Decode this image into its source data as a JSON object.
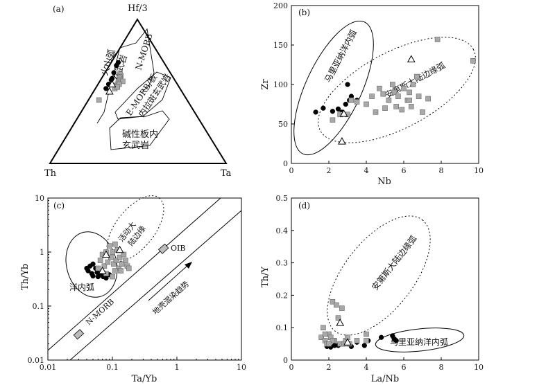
{
  "chart_data": [
    {
      "panel": "(a)",
      "type": "scatter",
      "subtype": "ternary",
      "apex_labels": [
        "Hf/3",
        "Th",
        "Ta"
      ],
      "field_labels": [
        "火山弧",
        "玄武岩",
        "N-MORB",
        "E-MORB/板",
        "内拉斑玄武岩",
        "碱性板内",
        "玄武岩"
      ],
      "series": [
        {
          "marker": "filled-circle",
          "color": "#000000",
          "points_hf_th_ta": [
            [
              0.7,
              0.26,
              0.04
            ],
            [
              0.68,
              0.28,
              0.04
            ],
            [
              0.63,
              0.32,
              0.05
            ],
            [
              0.59,
              0.35,
              0.06
            ],
            [
              0.58,
              0.36,
              0.06
            ],
            [
              0.55,
              0.39,
              0.06
            ],
            [
              0.52,
              0.42,
              0.06
            ]
          ]
        },
        {
          "marker": "gray-square",
          "color": "#a8a8a8",
          "points_hf_th_ta": [
            [
              0.62,
              0.29,
              0.09
            ],
            [
              0.61,
              0.29,
              0.1
            ],
            [
              0.6,
              0.3,
              0.1
            ],
            [
              0.59,
              0.31,
              0.1
            ],
            [
              0.58,
              0.31,
              0.11
            ],
            [
              0.57,
              0.32,
              0.11
            ],
            [
              0.56,
              0.33,
              0.11
            ],
            [
              0.55,
              0.34,
              0.11
            ],
            [
              0.54,
              0.35,
              0.11
            ],
            [
              0.53,
              0.36,
              0.11
            ],
            [
              0.52,
              0.37,
              0.11
            ],
            [
              0.57,
              0.3,
              0.13
            ],
            [
              0.55,
              0.33,
              0.12
            ],
            [
              0.53,
              0.35,
              0.12
            ],
            [
              0.44,
              0.5,
              0.06
            ]
          ]
        },
        {
          "marker": "open-triangle",
          "color": "#ffffff",
          "points_hf_th_ta": [
            [
              0.55,
              0.37,
              0.08
            ],
            [
              0.5,
              0.41,
              0.09
            ]
          ]
        }
      ]
    },
    {
      "panel": "(b)",
      "type": "scatter",
      "xlabel": "Nb",
      "ylabel": "Zr",
      "xlim": [
        0,
        10
      ],
      "ylim": [
        0,
        200
      ],
      "xticks": [
        "0",
        "2",
        "4",
        "6",
        "8",
        "10"
      ],
      "yticks": [
        "0",
        "50",
        "100",
        "150",
        "200"
      ],
      "field_labels": [
        "马里亚纳洋内弧",
        "安第斯大陆边缘弧"
      ],
      "series": [
        {
          "marker": "filled-circle",
          "color": "#000000",
          "points": [
            [
              1.3,
              65
            ],
            [
              1.7,
              70
            ],
            [
              2.2,
              66
            ],
            [
              2.5,
              69
            ],
            [
              2.9,
              75
            ],
            [
              3.0,
              100
            ],
            [
              3.2,
              85
            ],
            [
              3.5,
              80
            ],
            [
              2.7,
              65
            ],
            [
              3.1,
              80
            ]
          ]
        },
        {
          "marker": "gray-square",
          "color": "#a8a8a8",
          "points": [
            [
              2.2,
              55
            ],
            [
              2.6,
              62
            ],
            [
              3.0,
              62
            ],
            [
              3.2,
              80
            ],
            [
              3.5,
              78
            ],
            [
              4.0,
              75
            ],
            [
              4.3,
              85
            ],
            [
              4.5,
              65
            ],
            [
              4.7,
              95
            ],
            [
              4.9,
              88
            ],
            [
              5.0,
              70
            ],
            [
              5.2,
              80
            ],
            [
              5.4,
              100
            ],
            [
              5.5,
              90
            ],
            [
              5.6,
              72
            ],
            [
              5.7,
              85
            ],
            [
              5.9,
              68
            ],
            [
              6.0,
              95
            ],
            [
              6.2,
              80
            ],
            [
              6.3,
              90
            ],
            [
              6.3,
              80
            ],
            [
              6.4,
              72
            ],
            [
              6.5,
              100
            ],
            [
              6.7,
              110
            ],
            [
              6.8,
              85
            ],
            [
              7.0,
              65
            ],
            [
              7.3,
              82
            ],
            [
              7.8,
              157
            ],
            [
              9.7,
              130
            ]
          ]
        },
        {
          "marker": "open-triangle",
          "color": "#ffffff",
          "points": [
            [
              2.7,
              28
            ],
            [
              2.8,
              63
            ],
            [
              6.4,
              132
            ]
          ]
        }
      ]
    },
    {
      "panel": "(c)",
      "type": "scatter",
      "xlabel": "Ta/Yb",
      "ylabel": "Th/Yb",
      "xscale": "log",
      "yscale": "log",
      "xlim": [
        0.01,
        10
      ],
      "ylim": [
        0.01,
        10
      ],
      "xticks": [
        "0.01",
        "0.1",
        "1",
        "10"
      ],
      "yticks": [
        "0.01",
        "0.1",
        "1",
        "10"
      ],
      "field_labels": [
        "活动大",
        "陆边缘",
        "洋内弧",
        "N-MORB",
        "OIB",
        "地壳混染趋势"
      ],
      "series": [
        {
          "marker": "filled-circle",
          "color": "#000000",
          "points": [
            [
              0.04,
              0.5
            ],
            [
              0.045,
              0.55
            ],
            [
              0.05,
              0.6
            ],
            [
              0.042,
              0.45
            ],
            [
              0.048,
              0.4
            ],
            [
              0.055,
              0.5
            ],
            [
              0.06,
              0.35
            ],
            [
              0.065,
              0.4
            ],
            [
              0.072,
              0.35
            ],
            [
              0.08,
              0.33
            ],
            [
              0.09,
              0.38
            ],
            [
              0.058,
              0.42
            ],
            [
              0.05,
              0.36
            ]
          ]
        },
        {
          "marker": "gray-square",
          "color": "#a8a8a8",
          "points": [
            [
              0.06,
              0.5
            ],
            [
              0.065,
              0.7
            ],
            [
              0.07,
              0.9
            ],
            [
              0.075,
              0.55
            ],
            [
              0.08,
              1.0
            ],
            [
              0.085,
              0.65
            ],
            [
              0.09,
              1.3
            ],
            [
              0.095,
              0.8
            ],
            [
              0.1,
              1.0
            ],
            [
              0.105,
              0.6
            ],
            [
              0.11,
              1.4
            ],
            [
              0.115,
              0.7
            ],
            [
              0.12,
              1.1
            ],
            [
              0.125,
              0.5
            ],
            [
              0.13,
              0.8
            ],
            [
              0.135,
              0.45
            ],
            [
              0.14,
              0.6
            ],
            [
              0.15,
              0.9
            ],
            [
              0.16,
              0.7
            ],
            [
              0.17,
              0.55
            ],
            [
              0.18,
              0.5
            ],
            [
              0.08,
              0.4
            ],
            [
              0.1,
              0.35
            ],
            [
              0.11,
              0.45
            ]
          ]
        },
        {
          "marker": "open-triangle",
          "color": "#ffffff",
          "points": [
            [
              0.07,
              0.45
            ],
            [
              0.08,
              0.9
            ],
            [
              0.13,
              1.1
            ]
          ]
        }
      ]
    },
    {
      "panel": "(d)",
      "type": "scatter",
      "xlabel": "La/Nb",
      "ylabel": "Th/Y",
      "xlim": [
        0,
        10
      ],
      "ylim": [
        0,
        0.5
      ],
      "xticks": [
        "0",
        "2",
        "4",
        "6",
        "8",
        "10"
      ],
      "yticks": [
        "0",
        "0.1",
        "0.2",
        "0.3",
        "0.4",
        "0.5"
      ],
      "field_labels": [
        "安第斯大陆边缘弧",
        "马里亚纳洋内弧"
      ],
      "series": [
        {
          "marker": "filled-circle",
          "color": "#000000",
          "points": [
            [
              1.9,
              0.042
            ],
            [
              2.1,
              0.04
            ],
            [
              2.3,
              0.045
            ],
            [
              2.5,
              0.045
            ],
            [
              2.8,
              0.05
            ],
            [
              3.2,
              0.042
            ],
            [
              3.5,
              0.055
            ],
            [
              3.9,
              0.045
            ],
            [
              4.1,
              0.06
            ],
            [
              4.8,
              0.07
            ],
            [
              5.4,
              0.075
            ],
            [
              5.5,
              0.065
            ],
            [
              5.6,
              0.06
            ]
          ]
        },
        {
          "marker": "gray-square",
          "color": "#a8a8a8",
          "points": [
            [
              1.6,
              0.07
            ],
            [
              1.7,
              0.1
            ],
            [
              1.8,
              0.06
            ],
            [
              1.9,
              0.05
            ],
            [
              2.0,
              0.08
            ],
            [
              2.1,
              0.07
            ],
            [
              2.2,
              0.18
            ],
            [
              2.3,
              0.06
            ],
            [
              2.4,
              0.17
            ],
            [
              2.5,
              0.13
            ],
            [
              2.6,
              0.05
            ],
            [
              2.7,
              0.16
            ],
            [
              2.8,
              0.05
            ],
            [
              2.9,
              0.06
            ],
            [
              3.0,
              0.07
            ],
            [
              3.1,
              0.05
            ],
            [
              3.5,
              0.06
            ],
            [
              4.0,
              0.06
            ],
            [
              4.0,
              0.08
            ],
            [
              2.2,
              0.06
            ],
            [
              2.0,
              0.05
            ],
            [
              1.8,
              0.08
            ]
          ]
        },
        {
          "marker": "open-triangle",
          "color": "#ffffff",
          "points": [
            [
              2.6,
              0.115
            ],
            [
              3.0,
              0.055
            ]
          ]
        }
      ]
    }
  ]
}
